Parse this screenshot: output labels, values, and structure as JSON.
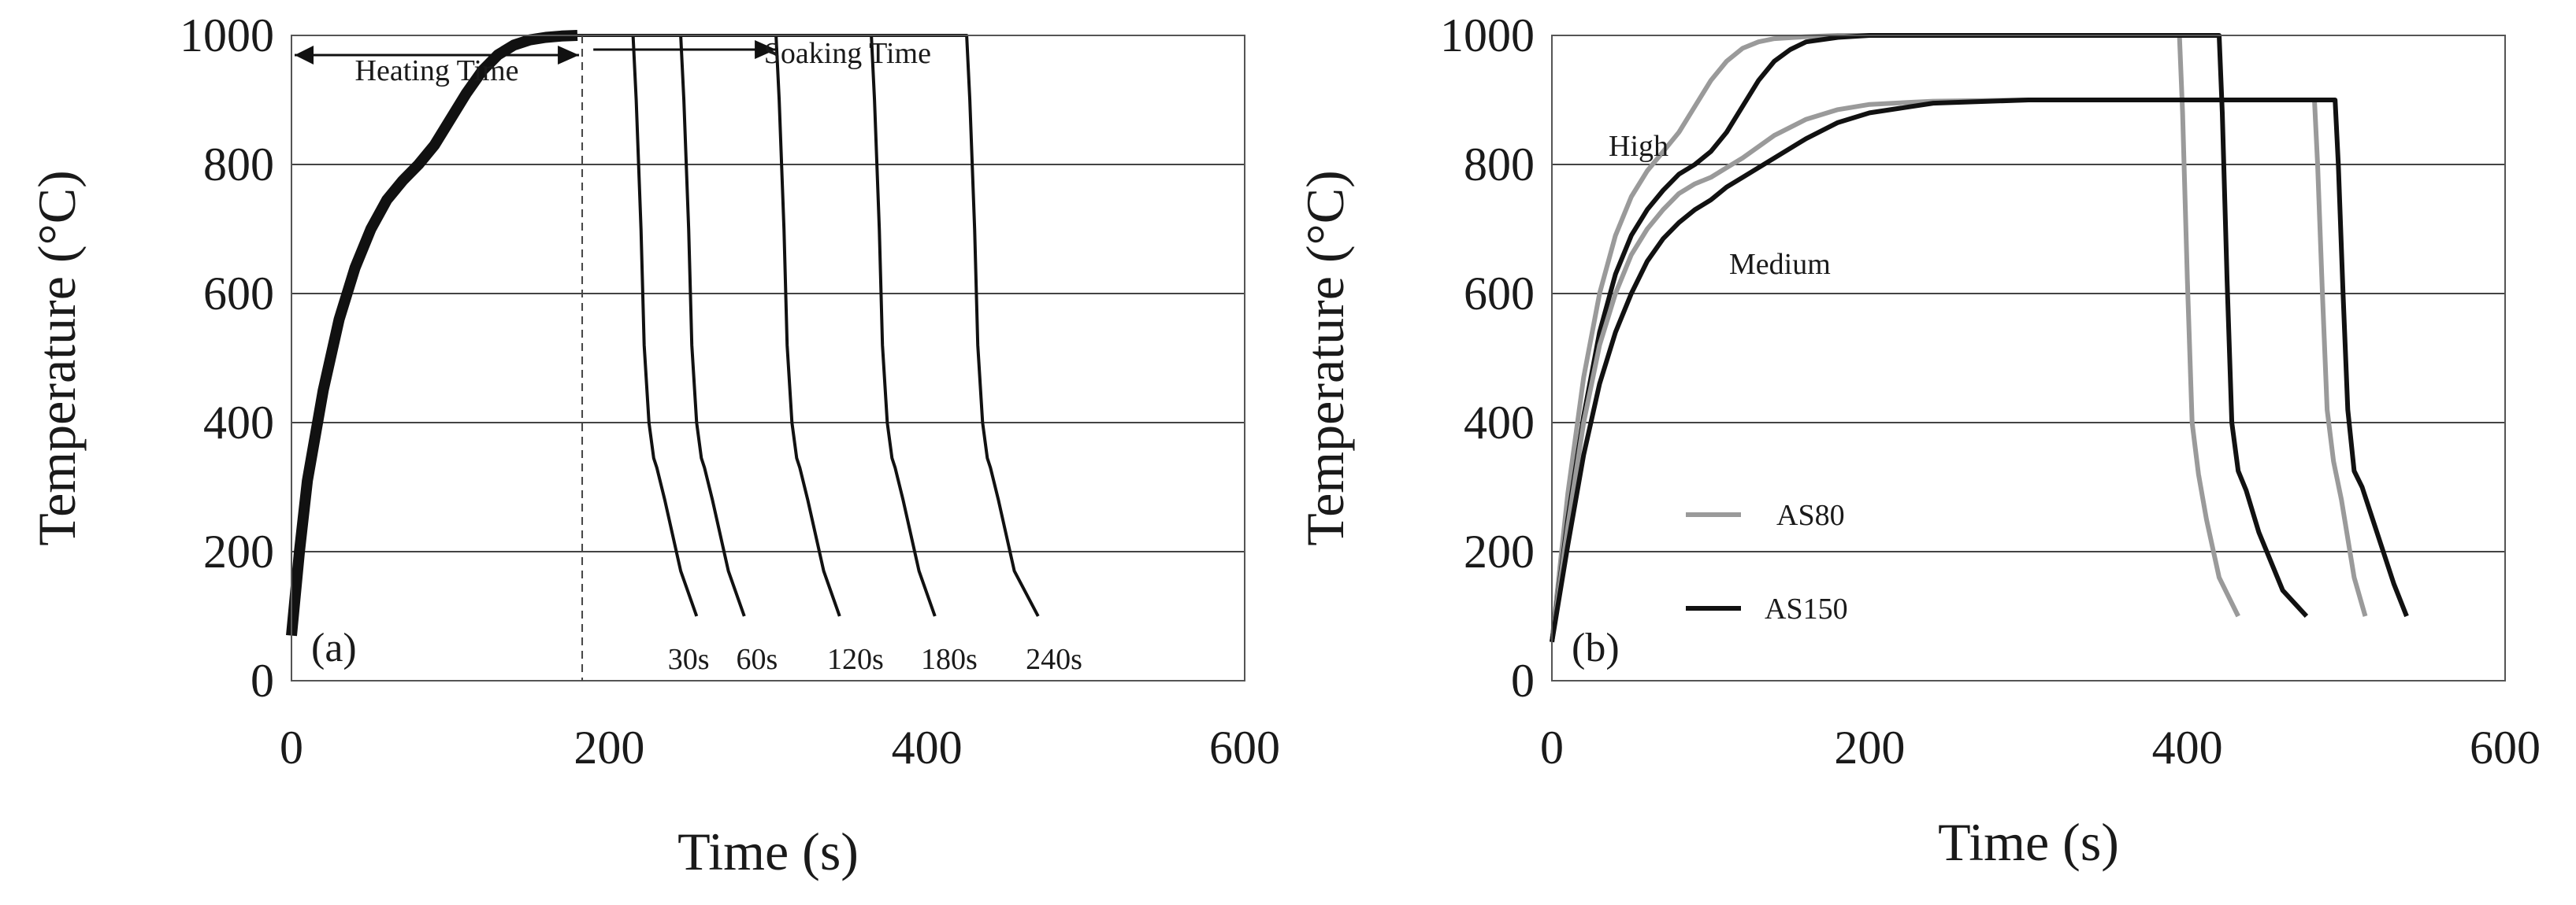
{
  "chart_data": [
    {
      "panel": "a",
      "type": "line",
      "panel_label": "(a)",
      "xlabel": "Time (s)",
      "ylabel": "Temperature (°C)",
      "xlim": [
        0,
        600
      ],
      "ylim": [
        0,
        1000
      ],
      "xticks": [
        0,
        200,
        400,
        600
      ],
      "yticks": [
        0,
        200,
        400,
        600,
        800,
        1000
      ],
      "grid": "horizontal",
      "line_color": "#111111",
      "heating_curve": {
        "x": [
          0,
          5,
          10,
          20,
          30,
          40,
          50,
          60,
          70,
          80,
          90,
          100,
          110,
          120,
          130,
          140,
          150,
          160,
          170,
          180
        ],
        "y": [
          70,
          200,
          310,
          450,
          560,
          640,
          700,
          745,
          775,
          800,
          830,
          870,
          910,
          945,
          970,
          985,
          993,
          997,
          999,
          1000
        ]
      },
      "series": [
        {
          "name": "30s",
          "x": [
            180,
            215,
            217,
            220,
            222,
            225,
            228,
            230,
            235,
            245,
            255
          ],
          "y": [
            1000,
            1000,
            900,
            700,
            520,
            400,
            345,
            330,
            280,
            170,
            100
          ]
        },
        {
          "name": "60s",
          "x": [
            180,
            245,
            247,
            250,
            252,
            255,
            258,
            260,
            265,
            275,
            285
          ],
          "y": [
            1000,
            1000,
            900,
            700,
            520,
            400,
            345,
            330,
            280,
            170,
            100
          ]
        },
        {
          "name": "120s",
          "x": [
            180,
            305,
            307,
            310,
            312,
            315,
            318,
            320,
            325,
            335,
            345
          ],
          "y": [
            1000,
            1000,
            900,
            700,
            520,
            400,
            345,
            330,
            280,
            170,
            100
          ]
        },
        {
          "name": "180s",
          "x": [
            180,
            365,
            367,
            370,
            372,
            375,
            378,
            380,
            385,
            395,
            405
          ],
          "y": [
            1000,
            1000,
            900,
            700,
            520,
            400,
            345,
            330,
            280,
            170,
            100
          ]
        },
        {
          "name": "240s",
          "x": [
            180,
            425,
            427,
            430,
            432,
            435,
            438,
            440,
            445,
            455,
            470
          ],
          "y": [
            1000,
            1000,
            900,
            700,
            520,
            400,
            345,
            330,
            280,
            170,
            100
          ]
        }
      ],
      "annotations": {
        "heating_label": "Heating Time",
        "soaking_label": "Soaking Time",
        "heating_range": [
          0,
          183
        ],
        "soaking_arrow_range": [
          190,
          305
        ],
        "divider_x": 183,
        "end_labels": [
          "30s",
          "60s",
          "120s",
          "180s",
          "240s"
        ]
      }
    },
    {
      "panel": "b",
      "type": "line",
      "panel_label": "(b)",
      "xlabel": "Time (s)",
      "ylabel": "Temperature (°C)",
      "xlim": [
        0,
        600
      ],
      "ylim": [
        0,
        1000
      ],
      "xticks": [
        0,
        200,
        400,
        600
      ],
      "yticks": [
        0,
        200,
        400,
        600,
        800,
        1000
      ],
      "grid": "horizontal",
      "series": [
        {
          "name": "AS80 High",
          "color": "#9a9a9a",
          "x": [
            0,
            10,
            20,
            30,
            40,
            50,
            60,
            70,
            80,
            90,
            100,
            110,
            120,
            130,
            140,
            160,
            180,
            200,
            300,
            395,
            397,
            400,
            403,
            407,
            412,
            420,
            432
          ],
          "y": [
            60,
            290,
            470,
            600,
            690,
            750,
            790,
            820,
            850,
            890,
            930,
            960,
            980,
            990,
            995,
            998,
            1000,
            1000,
            1000,
            1000,
            880,
            620,
            400,
            320,
            250,
            160,
            100
          ]
        },
        {
          "name": "AS150 High",
          "color": "#111111",
          "x": [
            0,
            10,
            20,
            30,
            40,
            50,
            60,
            70,
            80,
            90,
            100,
            110,
            120,
            130,
            140,
            150,
            160,
            180,
            200,
            300,
            420,
            422,
            425,
            428,
            432,
            437,
            445,
            460,
            475
          ],
          "y": [
            60,
            250,
            410,
            540,
            630,
            690,
            730,
            760,
            785,
            800,
            820,
            850,
            890,
            930,
            960,
            978,
            990,
            997,
            1000,
            1000,
            1000,
            880,
            620,
            400,
            325,
            295,
            230,
            140,
            100
          ]
        },
        {
          "name": "AS80 Medium",
          "color": "#9a9a9a",
          "x": [
            0,
            10,
            20,
            30,
            40,
            50,
            60,
            70,
            80,
            90,
            100,
            110,
            120,
            140,
            160,
            180,
            200,
            240,
            300,
            400,
            480,
            482,
            485,
            488,
            492,
            497,
            505,
            512
          ],
          "y": [
            60,
            240,
            400,
            520,
            600,
            660,
            700,
            730,
            755,
            770,
            780,
            795,
            810,
            845,
            870,
            885,
            893,
            898,
            900,
            900,
            900,
            800,
            600,
            420,
            340,
            280,
            160,
            100
          ]
        },
        {
          "name": "AS150 Medium",
          "color": "#111111",
          "x": [
            0,
            10,
            20,
            30,
            40,
            50,
            60,
            70,
            80,
            90,
            100,
            110,
            120,
            140,
            160,
            180,
            200,
            240,
            300,
            400,
            493,
            495,
            498,
            501,
            505,
            510,
            518,
            530,
            538
          ],
          "y": [
            60,
            210,
            350,
            460,
            540,
            600,
            650,
            685,
            710,
            730,
            745,
            765,
            780,
            810,
            840,
            865,
            880,
            895,
            900,
            900,
            900,
            800,
            600,
            420,
            325,
            300,
            240,
            150,
            100
          ]
        }
      ],
      "annotations": {
        "high_label": "High",
        "medium_label": "Medium"
      },
      "legend": {
        "position": "lower-left",
        "entries": [
          {
            "label": "AS80",
            "color": "#9a9a9a"
          },
          {
            "label": "AS150",
            "color": "#111111"
          }
        ]
      }
    }
  ]
}
